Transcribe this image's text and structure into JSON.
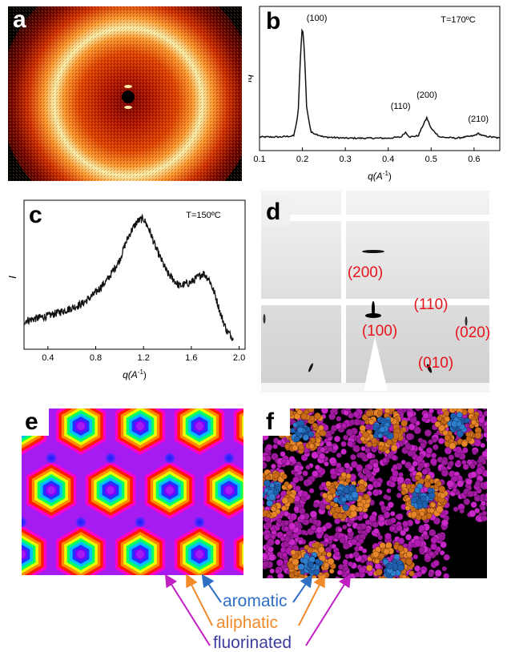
{
  "panels": {
    "a": {
      "letter": "a"
    },
    "b": {
      "letter": "b",
      "temperature": "T=170ºC",
      "ylabel": "Iq",
      "xlabel": "q(A",
      "xlabel_sup": "-1",
      "xlabel_close": ")",
      "peak_labels": [
        "(100)",
        "(110)",
        "(200)",
        "(210)"
      ]
    },
    "c": {
      "letter": "c",
      "temperature": "T=150ºC",
      "ylabel": "I",
      "xlabel": "q(A",
      "xlabel_sup": "-1",
      "xlabel_close": ")"
    },
    "d": {
      "letter": "d",
      "reflections": [
        "(200)",
        "(110)",
        "(100)",
        "(020)",
        "(010)"
      ]
    },
    "e": {
      "letter": "e"
    },
    "f": {
      "letter": "f"
    }
  },
  "legend": {
    "aromatic": "aromatic",
    "aliphatic": "aliphatic",
    "fluorinated": "fluorinated"
  },
  "colors": {
    "aromatic": "#2f6fc4",
    "aliphatic": "#f08a2b",
    "fluorinated": "#3d3d9e",
    "fluorinated_arrow": "#c21fc2",
    "reflection_label": "#e8141b"
  },
  "chart_data": [
    {
      "type": "line",
      "panel": "b",
      "title": "T=170ºC",
      "xlabel": "q(A-1)",
      "ylabel": "Iq",
      "xlim": [
        0.1,
        0.66
      ],
      "xticks": [
        0.1,
        0.2,
        0.3,
        0.4,
        0.5,
        0.6
      ],
      "x": [
        0.1,
        0.15,
        0.18,
        0.19,
        0.195,
        0.2,
        0.205,
        0.21,
        0.22,
        0.25,
        0.3,
        0.35,
        0.4,
        0.43,
        0.44,
        0.45,
        0.47,
        0.48,
        0.49,
        0.5,
        0.52,
        0.56,
        0.6,
        0.61,
        0.62,
        0.66
      ],
      "y": [
        0.06,
        0.06,
        0.07,
        0.25,
        0.7,
        1.0,
        0.75,
        0.3,
        0.1,
        0.06,
        0.05,
        0.05,
        0.05,
        0.06,
        0.1,
        0.06,
        0.07,
        0.15,
        0.22,
        0.13,
        0.06,
        0.05,
        0.07,
        0.09,
        0.07,
        0.05
      ],
      "peaks": [
        {
          "label": "(100)",
          "q": 0.2
        },
        {
          "label": "(110)",
          "q": 0.44
        },
        {
          "label": "(200)",
          "q": 0.49
        },
        {
          "label": "(210)",
          "q": 0.61
        }
      ]
    },
    {
      "type": "line",
      "panel": "c",
      "title": "T=150ºC",
      "xlabel": "q(A-1)",
      "ylabel": "I",
      "xlim": [
        0.2,
        2.05
      ],
      "xticks": [
        0.4,
        0.8,
        1.2,
        1.6,
        2.0
      ],
      "x": [
        0.2,
        0.3,
        0.4,
        0.5,
        0.6,
        0.7,
        0.8,
        0.9,
        1.0,
        1.05,
        1.1,
        1.15,
        1.2,
        1.25,
        1.3,
        1.4,
        1.5,
        1.6,
        1.7,
        1.75,
        1.8,
        1.85,
        1.9,
        1.95
      ],
      "y": [
        0.18,
        0.2,
        0.22,
        0.25,
        0.28,
        0.32,
        0.4,
        0.5,
        0.65,
        0.78,
        0.88,
        0.95,
        0.97,
        0.88,
        0.75,
        0.55,
        0.45,
        0.48,
        0.55,
        0.5,
        0.38,
        0.22,
        0.1,
        0.05
      ]
    }
  ]
}
